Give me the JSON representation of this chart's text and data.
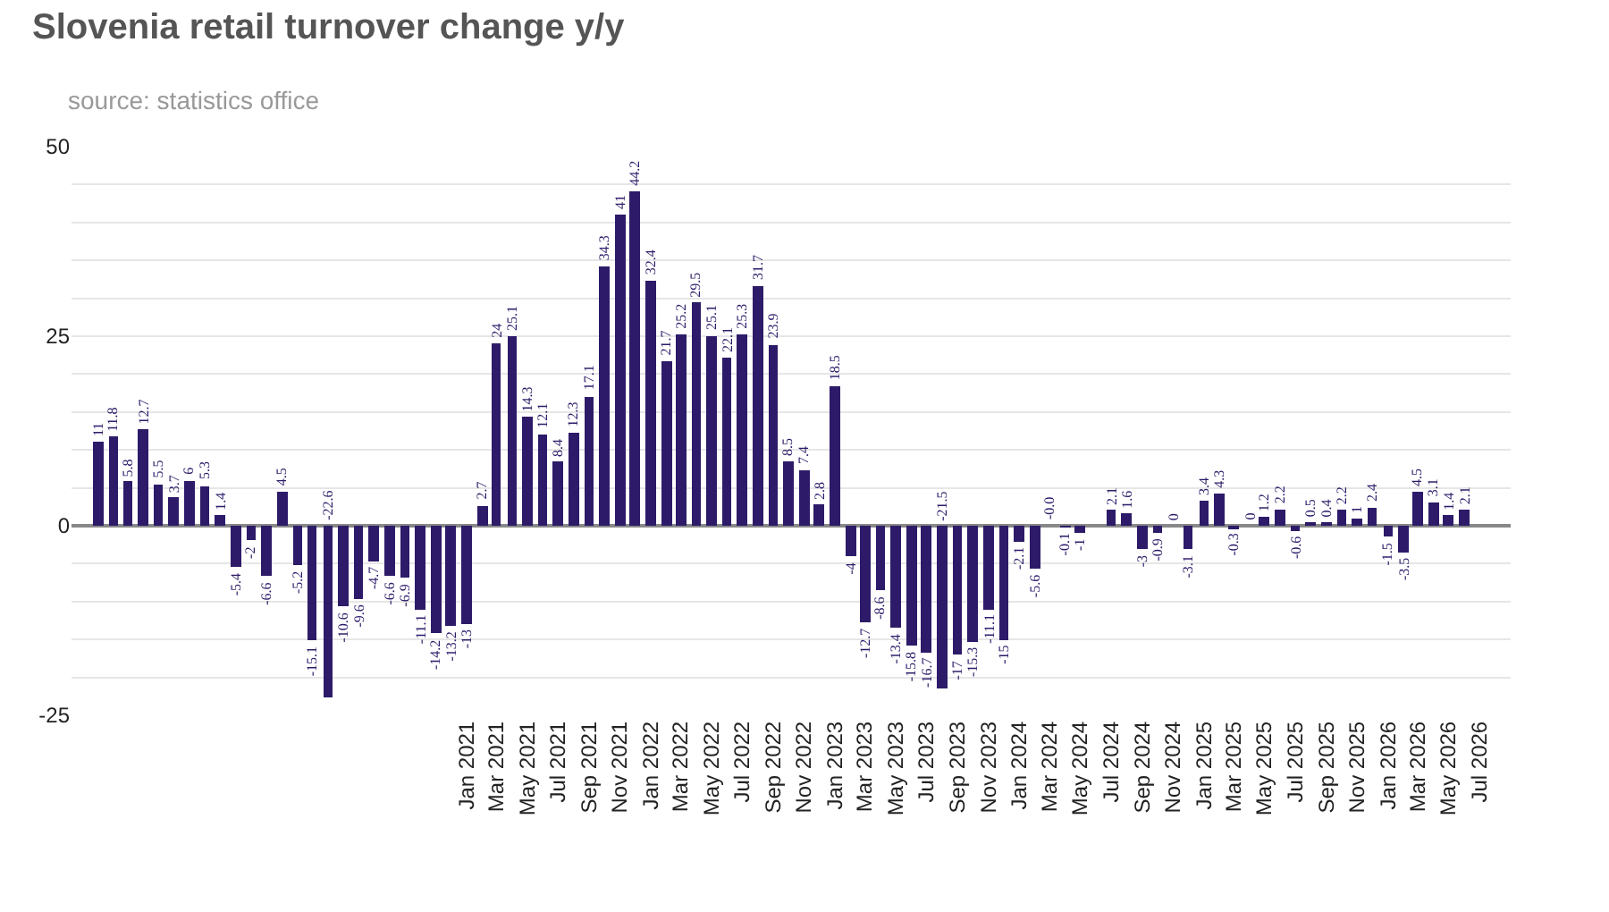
{
  "chart_data": {
    "type": "bar",
    "title": "Slovenia retail turnover change y/y",
    "subtitle": "source: statistics office",
    "x": [
      "2019-01",
      "2019-02",
      "2019-03",
      "2019-04",
      "2019-05",
      "2019-06",
      "2019-07",
      "2019-08",
      "2019-09",
      "2019-10",
      "2019-11",
      "2019-12",
      "2020-01",
      "2020-02",
      "2020-03",
      "2020-04",
      "2020-05",
      "2020-06",
      "2020-07",
      "2020-08",
      "2020-09",
      "2020-10",
      "2020-11",
      "2020-12",
      "2021-01",
      "2021-02",
      "2021-03",
      "2021-04",
      "2021-05",
      "2021-06",
      "2021-07",
      "2021-08",
      "2021-09",
      "2021-10",
      "2021-11",
      "2021-12",
      "2022-01",
      "2022-02",
      "2022-03",
      "2022-04",
      "2022-05",
      "2022-06",
      "2022-07",
      "2022-08",
      "2022-09",
      "2022-10",
      "2022-11",
      "2022-12",
      "2023-01",
      "2023-02",
      "2023-03",
      "2023-04",
      "2023-05",
      "2023-06",
      "2023-07",
      "2023-08",
      "2023-09",
      "2023-10",
      "2023-11",
      "2023-12",
      "2024-01",
      "2024-02",
      "2024-03",
      "2024-04",
      "2024-05",
      "2024-06",
      "2024-07",
      "2024-08",
      "2024-09",
      "2024-10",
      "2024-11",
      "2024-12",
      "2025-01",
      "2025-02",
      "2025-03",
      "2025-04",
      "2025-05",
      "2025-06",
      "2025-07",
      "2025-08",
      "2025-09",
      "2025-10",
      "2025-11",
      "2025-12",
      "2026-01",
      "2026-02",
      "2026-03",
      "2026-04",
      "2026-05",
      "2026-06"
    ],
    "values": [
      11,
      11.8,
      5.8,
      12.7,
      5.5,
      3.7,
      6,
      5.3,
      1.4,
      -5.4,
      -2,
      -6.6,
      4.5,
      -5.2,
      -15.1,
      -22.6,
      -10.6,
      -9.6,
      -4.7,
      -6.6,
      -6.9,
      -11.1,
      -14.2,
      -13.2,
      -13,
      2.7,
      24,
      25.1,
      14.3,
      12.1,
      8.4,
      12.3,
      17.1,
      34.3,
      41,
      44.2,
      32.4,
      21.7,
      25.2,
      29.5,
      25.1,
      22.1,
      25.3,
      31.7,
      23.9,
      8.5,
      7.4,
      2.8,
      18.5,
      -4,
      -12.7,
      -8.6,
      -13.4,
      -15.8,
      -16.7,
      -21.5,
      -17,
      -15.3,
      -11.1,
      -15,
      -2.1,
      -5.6,
      0,
      -0.1,
      -1,
      0,
      2.1,
      1.6,
      -3,
      -0.9,
      0,
      -3.1,
      3.4,
      4.3,
      -0.3,
      0,
      1.2,
      2.2,
      -0.6,
      0.5,
      0.4,
      2.2,
      1,
      2.4,
      -1.5,
      -3.5,
      4.5,
      3.1,
      1.4,
      2.1
    ],
    "value_labels": [
      "11",
      "11.8",
      "5.8",
      "12.7",
      "5.5",
      "3.7",
      "6",
      "5.3",
      "1.4",
      "-5.4",
      "-2",
      "-6.6",
      "4.5",
      "-5.2",
      "-15.1",
      "-22.6",
      "-10.6",
      "-9.6",
      "-4.7",
      "-6.6",
      "-6.9",
      "-11.1",
      "-14.2",
      "-13.2",
      "-13",
      "2.7",
      "24",
      "25.1",
      "14.3",
      "12.1",
      "8.4",
      "12.3",
      "17.1",
      "34.3",
      "41",
      "44.2",
      "32.4",
      "21.7",
      "25.2",
      "29.5",
      "25.1",
      "22.1",
      "25.3",
      "31.7",
      "23.9",
      "8.5",
      "7.4",
      "2.8",
      "18.5",
      "-4",
      "-12.7",
      "-8.6",
      "-13.4",
      "-15.8",
      "-16.7",
      "-21.5",
      "-17",
      "-15.3",
      "-11.1",
      "-15",
      "-2.1",
      "-5.6",
      "-0.0",
      "-0.1",
      "-1",
      null,
      "2.1",
      "1.6",
      "-3",
      "-0.9",
      "0",
      "-3.1",
      "3.4",
      "4.3",
      "-0.3",
      "0",
      "1.2",
      "2.2",
      "-0.6",
      "0.5",
      "0.4",
      "2.2",
      "1",
      "2.4",
      "-1.5",
      "-3.5",
      "4.5",
      "3.1",
      "1.4",
      "2.1"
    ],
    "color": "#2d1b69",
    "xlim": [
      "2018-11-10",
      "2026-09-01"
    ],
    "xticks": [
      {
        "value": "2021-01",
        "label": "Jan 2021"
      },
      {
        "value": "2021-03",
        "label": "Mar 2021"
      },
      {
        "value": "2021-05",
        "label": "May 2021"
      },
      {
        "value": "2021-07",
        "label": "Jul 2021"
      },
      {
        "value": "2021-09",
        "label": "Sep 2021"
      },
      {
        "value": "2021-11",
        "label": "Nov 2021"
      },
      {
        "value": "2022-01",
        "label": "Jan 2022"
      },
      {
        "value": "2022-03",
        "label": "Mar 2022"
      },
      {
        "value": "2022-05",
        "label": "May 2022"
      },
      {
        "value": "2022-07",
        "label": "Jul 2022"
      },
      {
        "value": "2022-09",
        "label": "Sep 2022"
      },
      {
        "value": "2022-11",
        "label": "Nov 2022"
      },
      {
        "value": "2023-01",
        "label": "Jan 2023"
      },
      {
        "value": "2023-03",
        "label": "Mar 2023"
      },
      {
        "value": "2023-05",
        "label": "May 2023"
      },
      {
        "value": "2023-07",
        "label": "Jul 2023"
      },
      {
        "value": "2023-09",
        "label": "Sep 2023"
      },
      {
        "value": "2023-11",
        "label": "Nov 2023"
      },
      {
        "value": "2024-01",
        "label": "Jan 2024"
      },
      {
        "value": "2024-03",
        "label": "Mar 2024"
      },
      {
        "value": "2024-05",
        "label": "May 2024"
      },
      {
        "value": "2024-07",
        "label": "Jul 2024"
      },
      {
        "value": "2024-09",
        "label": "Sep 2024"
      },
      {
        "value": "2024-11",
        "label": "Nov 2024"
      },
      {
        "value": "2025-01",
        "label": "Jan 2025"
      },
      {
        "value": "2025-03",
        "label": "Mar 2025"
      },
      {
        "value": "2025-05",
        "label": "May 2025"
      },
      {
        "value": "2025-07",
        "label": "Jul 2025"
      },
      {
        "value": "2025-09",
        "label": "Sep 2025"
      },
      {
        "value": "2025-11",
        "label": "Nov 2025"
      },
      {
        "value": "2026-01",
        "label": "Jan 2026"
      },
      {
        "value": "2026-03",
        "label": "Mar 2026"
      },
      {
        "value": "2026-05",
        "label": "May 2026"
      },
      {
        "value": "2026-07",
        "label": "Jul 2026"
      }
    ],
    "ylim": [
      -25,
      50
    ],
    "yticks": [
      -25,
      0,
      25,
      50
    ],
    "grid": "y",
    "legend": false
  }
}
